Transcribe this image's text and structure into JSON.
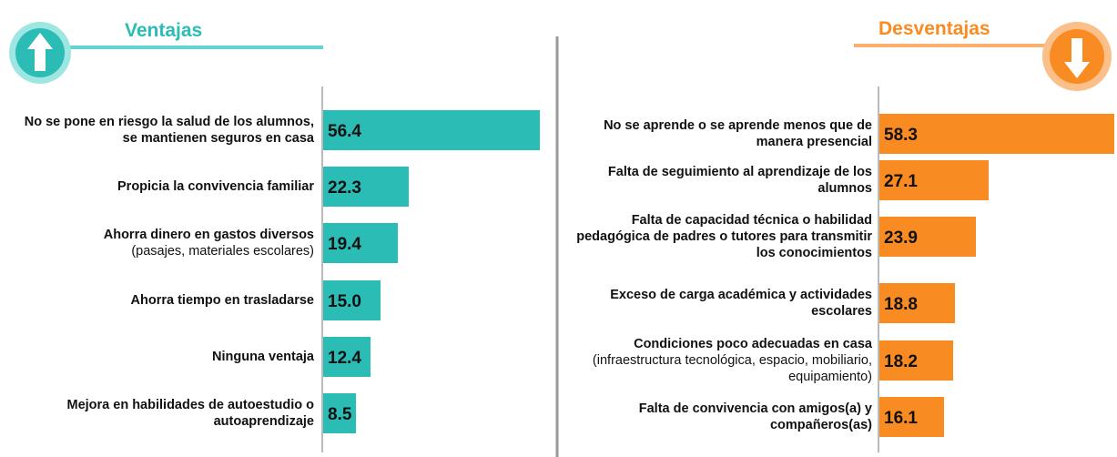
{
  "chart_data": [
    {
      "type": "bar",
      "orientation": "horizontal",
      "title": "Ventajas",
      "color": "#2bbdb5",
      "categories": [
        "No se pone en riesgo la salud de los alumnos, se mantienen seguros en casa",
        "Propicia la convivencia familiar",
        "Ahorra dinero en gastos diversos",
        "Ahorra tiempo en trasladarse",
        "Ninguna ventaja",
        "Mejora en habilidades de autoestudio o autoaprendizaje"
      ],
      "category_details": [
        null,
        null,
        "(pasajes, materiales escolares)",
        null,
        null,
        null
      ],
      "values": [
        56.4,
        22.3,
        19.4,
        15.0,
        12.4,
        8.5
      ],
      "value_labels": [
        "56.4",
        "22.3",
        "19.4",
        "15.0",
        "12.4",
        "8.5"
      ]
    },
    {
      "type": "bar",
      "orientation": "horizontal",
      "title": "Desventajas",
      "color": "#f98b23",
      "categories": [
        "No se aprende o se aprende menos que de manera presencial",
        "Falta de seguimiento al aprendizaje de los alumnos",
        "Falta de capacidad técnica o habilidad pedagógica de padres o tutores para transmitir los conocimientos",
        "Exceso de carga académica y actividades escolares",
        "Condiciones poco adecuadas en casa",
        "Falta de convivencia con amigos(a) y compañeros(as)"
      ],
      "category_details": [
        null,
        null,
        null,
        null,
        "(infraestructura tecnológica, espacio, mobiliario, equipamiento)",
        null
      ],
      "values": [
        58.3,
        27.1,
        23.9,
        18.8,
        18.2,
        16.1
      ],
      "value_labels": [
        "58.3",
        "27.1",
        "23.9",
        "18.8",
        "18.2",
        "16.1"
      ]
    }
  ]
}
